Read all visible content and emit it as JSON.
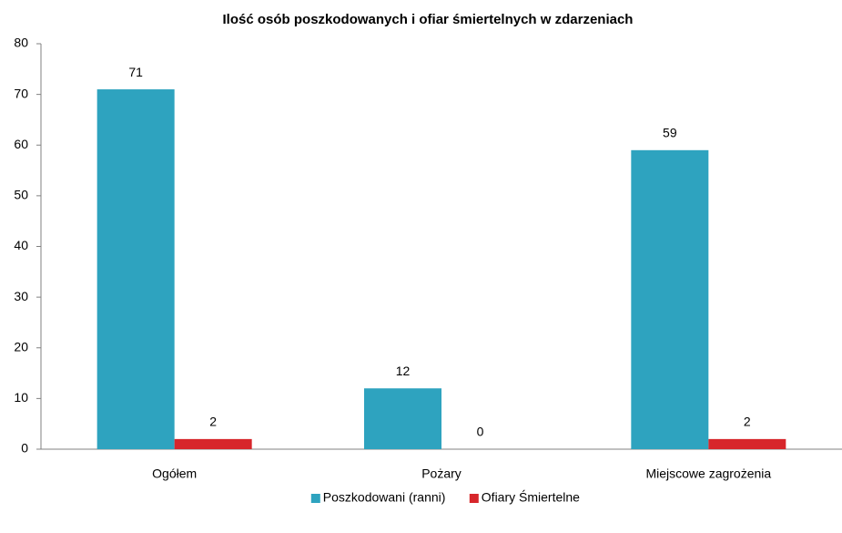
{
  "chart_data": {
    "type": "bar",
    "title": "Ilość osób poszkodowanych i ofiar śmiertelnych w zdarzeniach",
    "categories": [
      "Ogółem",
      "Pożary",
      "Miejscowe zagrożenia"
    ],
    "series": [
      {
        "name": "Poszkodowani (ranni)",
        "color": "#2ea3bf",
        "values": [
          71,
          12,
          59
        ]
      },
      {
        "name": "Ofiary Śmiertelne",
        "color": "#d7262b",
        "values": [
          2,
          0,
          2
        ]
      }
    ],
    "ylim": [
      0,
      80
    ],
    "yticks": [
      0,
      10,
      20,
      30,
      40,
      50,
      60,
      70,
      80
    ],
    "grid": false,
    "legend": "bottom"
  }
}
